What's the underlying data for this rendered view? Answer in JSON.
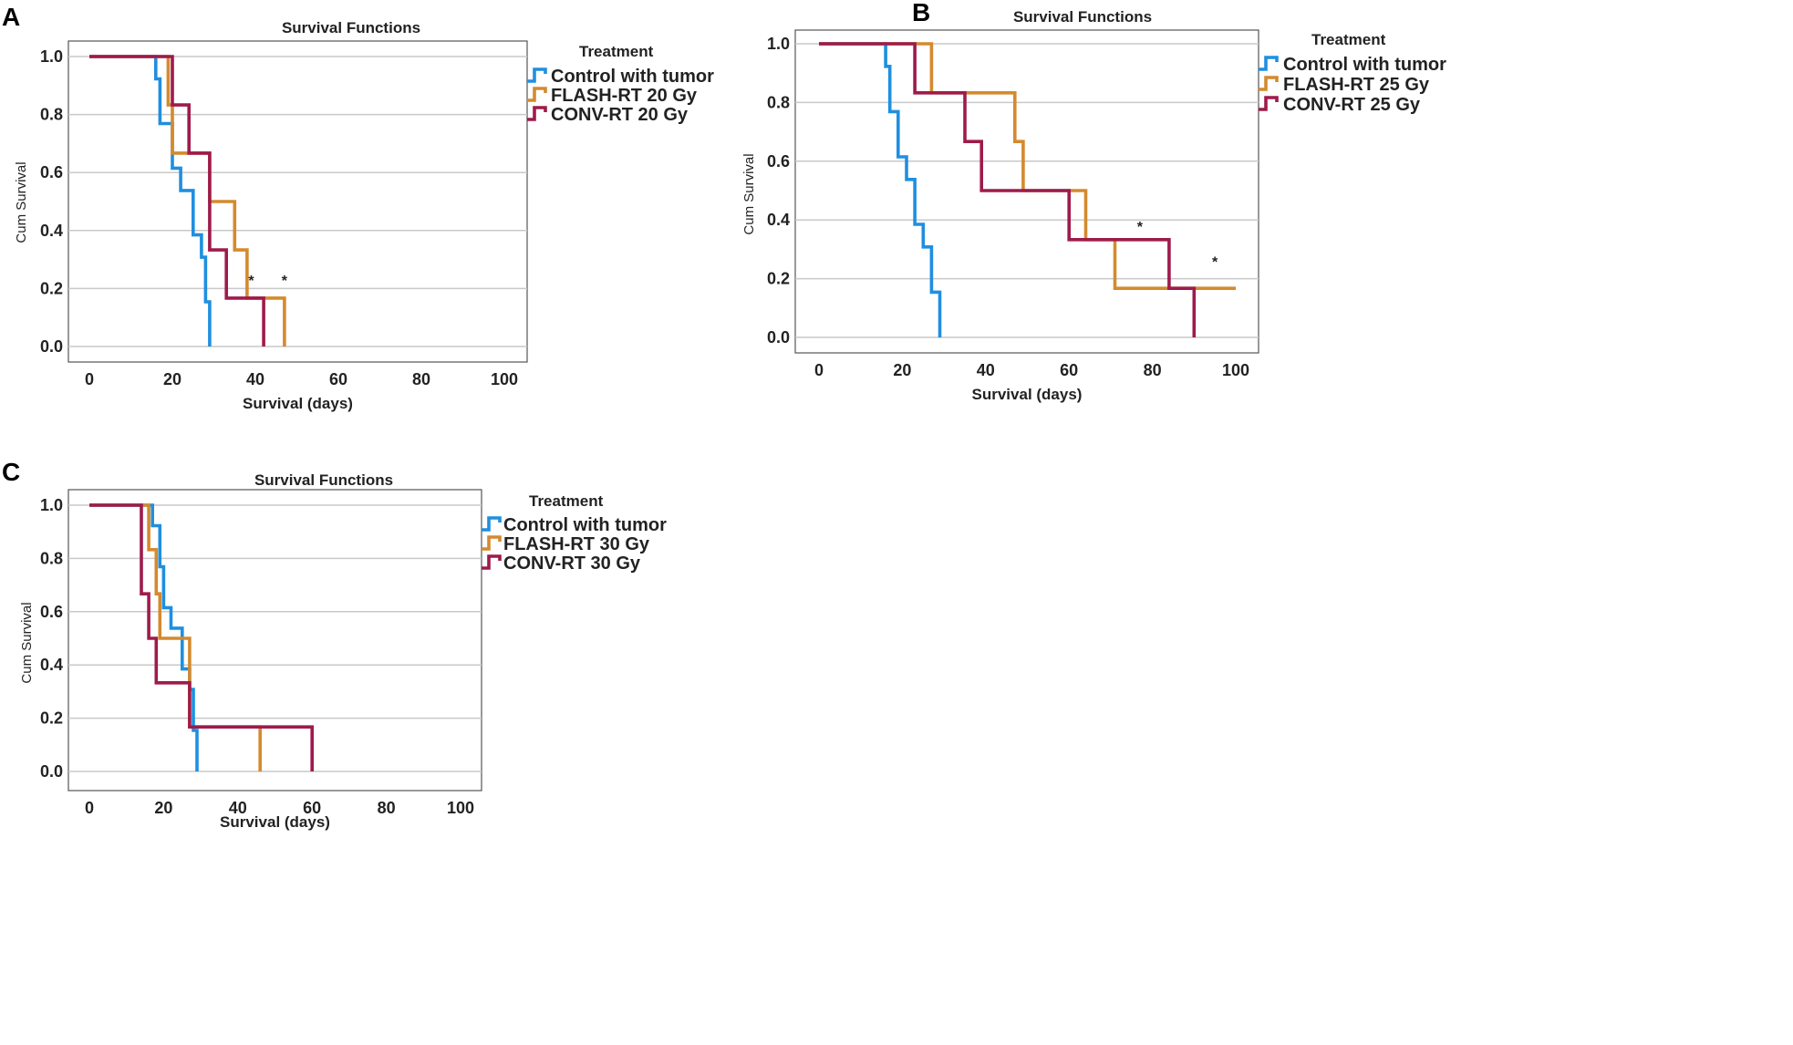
{
  "chart_data": [
    {
      "panel": "A",
      "type": "line",
      "title": "Survival Functions",
      "xlabel": "Survival (days)",
      "ylabel": "Cum Survival",
      "xlim": [
        0,
        100
      ],
      "ylim": [
        0,
        1
      ],
      "xticks": [
        0,
        20,
        40,
        60,
        80,
        100
      ],
      "yticks": [
        "0.0",
        "0.2",
        "0.4",
        "0.6",
        "0.8",
        "1.0"
      ],
      "legend_title": "Treatment",
      "legend_position": "top-right",
      "annotations": [
        {
          "text": "*",
          "x": 39,
          "y": 0.21
        },
        {
          "text": "*",
          "x": 47,
          "y": 0.21
        }
      ],
      "series": [
        {
          "name": "Control with tumor",
          "color": "#1f8fe0",
          "x": [
            0,
            16,
            16,
            17,
            17,
            20,
            20,
            22,
            22,
            25,
            25,
            27,
            27,
            28,
            28,
            29,
            29
          ],
          "y": [
            1,
            1,
            0.923,
            0.923,
            0.769,
            0.769,
            0.615,
            0.615,
            0.538,
            0.538,
            0.385,
            0.385,
            0.308,
            0.308,
            0.154,
            0.154,
            0
          ]
        },
        {
          "name": "FLASH-RT 20 Gy",
          "color": "#d48a2e",
          "x": [
            0,
            19,
            19,
            20,
            20,
            29,
            29,
            35,
            35,
            38,
            38,
            47,
            47
          ],
          "y": [
            1,
            1,
            0.833,
            0.833,
            0.667,
            0.667,
            0.5,
            0.5,
            0.333,
            0.333,
            0.167,
            0.167,
            0
          ]
        },
        {
          "name": "CONV-RT 20 Gy",
          "color": "#9e1b4b",
          "x": [
            0,
            20,
            20,
            24,
            24,
            29,
            29,
            33,
            33,
            36,
            36,
            42,
            42
          ],
          "y": [
            1,
            1,
            0.833,
            0.833,
            0.667,
            0.667,
            0.333,
            0.333,
            0.167,
            0.167,
            0.167,
            0.167,
            0
          ]
        }
      ]
    },
    {
      "panel": "B",
      "type": "line",
      "title": "Survival Functions",
      "xlabel": "Survival (days)",
      "ylabel": "Cum Survival",
      "xlim": [
        0,
        100
      ],
      "ylim": [
        0,
        1
      ],
      "xticks": [
        0,
        20,
        40,
        60,
        80,
        100
      ],
      "yticks": [
        "0.0",
        "0.2",
        "0.4",
        "0.6",
        "0.8",
        "1.0"
      ],
      "legend_title": "Treatment",
      "legend_position": "top-right",
      "annotations": [
        {
          "text": "*",
          "x": 77,
          "y": 0.36
        },
        {
          "text": "*",
          "x": 95,
          "y": 0.24
        }
      ],
      "series": [
        {
          "name": "Control with tumor",
          "color": "#1f8fe0",
          "x": [
            0,
            16,
            16,
            17,
            17,
            19,
            19,
            21,
            21,
            23,
            23,
            25,
            25,
            27,
            27,
            28,
            28,
            29,
            29
          ],
          "y": [
            1,
            1,
            0.923,
            0.923,
            0.769,
            0.769,
            0.615,
            0.615,
            0.538,
            0.538,
            0.385,
            0.385,
            0.308,
            0.308,
            0.154,
            0.154,
            0.154,
            0.154,
            0
          ]
        },
        {
          "name": "FLASH-RT 25 Gy",
          "color": "#d48a2e",
          "x": [
            0,
            27,
            27,
            47,
            47,
            49,
            49,
            64,
            64,
            71,
            71,
            100
          ],
          "y": [
            1,
            1,
            0.833,
            0.833,
            0.667,
            0.667,
            0.5,
            0.5,
            0.333,
            0.333,
            0.167,
            0.167
          ]
        },
        {
          "name": "CONV-RT 25 Gy",
          "color": "#9e1b4b",
          "x": [
            0,
            23,
            23,
            35,
            35,
            39,
            39,
            60,
            60,
            84,
            84,
            90,
            90
          ],
          "y": [
            1,
            1,
            0.833,
            0.833,
            0.667,
            0.667,
            0.5,
            0.5,
            0.333,
            0.333,
            0.167,
            0.167,
            0
          ]
        }
      ]
    },
    {
      "panel": "C",
      "type": "line",
      "title": "Survival Functions",
      "xlabel": "Survival (days)",
      "ylabel": "Cum Survival",
      "xlim": [
        0,
        100
      ],
      "ylim": [
        0,
        1
      ],
      "xticks": [
        0,
        20,
        40,
        60,
        80,
        100
      ],
      "yticks": [
        "0.0",
        "0.2",
        "0.4",
        "0.6",
        "0.8",
        "1.0"
      ],
      "legend_title": "Treatment",
      "legend_position": "top-right",
      "annotations": [],
      "series": [
        {
          "name": "Control with tumor",
          "color": "#1f8fe0",
          "x": [
            0,
            17,
            17,
            19,
            19,
            20,
            20,
            22,
            22,
            25,
            25,
            27,
            27,
            28,
            28,
            29,
            29
          ],
          "y": [
            1,
            1,
            0.923,
            0.923,
            0.769,
            0.769,
            0.615,
            0.615,
            0.538,
            0.538,
            0.385,
            0.385,
            0.308,
            0.308,
            0.154,
            0.154,
            0
          ]
        },
        {
          "name": "FLASH-RT 30 Gy",
          "color": "#d48a2e",
          "x": [
            0,
            16,
            16,
            18,
            18,
            19,
            19,
            27,
            27,
            46,
            46
          ],
          "y": [
            1,
            1,
            0.833,
            0.833,
            0.667,
            0.667,
            0.5,
            0.5,
            0.167,
            0.167,
            0
          ]
        },
        {
          "name": "CONV-RT 30 Gy",
          "color": "#9e1b4b",
          "x": [
            0,
            14,
            14,
            16,
            16,
            18,
            18,
            27,
            27,
            60,
            60
          ],
          "y": [
            1,
            1,
            0.667,
            0.667,
            0.5,
            0.5,
            0.333,
            0.333,
            0.167,
            0.167,
            0
          ]
        }
      ]
    }
  ]
}
